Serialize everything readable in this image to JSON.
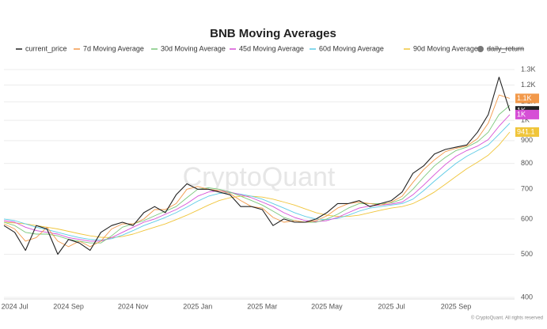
{
  "chart_data": {
    "type": "line",
    "title": "BNB Moving Averages",
    "watermark": "CryptoQuant",
    "copyright": "© CryptoQuant. All rights reserved",
    "categories": [
      null,
      "2024 Jul",
      null,
      null,
      null,
      null,
      "2024 Sep",
      null,
      null,
      null,
      null,
      null,
      "2024 Nov",
      null,
      null,
      null,
      null,
      null,
      "2025 Jan",
      null,
      null,
      null,
      null,
      null,
      "2025 Mar",
      null,
      null,
      null,
      null,
      null,
      "2025 May",
      null,
      null,
      null,
      null,
      null,
      "2025 Jul",
      null,
      null,
      null,
      null,
      null,
      "2025 Sep",
      null,
      null,
      null,
      null,
      null
    ],
    "log_scale": true,
    "grid": true,
    "ylim": [
      400,
      1300
    ],
    "yticks": [
      400,
      500,
      600,
      700,
      800,
      900,
      {
        "value": 1000,
        "label": "1K"
      },
      {
        "value": 1100,
        "label": "1.1K"
      },
      {
        "value": 1200,
        "label": "1.2K"
      },
      {
        "value": 1300,
        "label": "1.3K"
      }
    ],
    "series": [
      {
        "name": "current_price",
        "color": "#222222",
        "end_label": "1K",
        "values": [
          580,
          560,
          510,
          580,
          570,
          500,
          540,
          530,
          510,
          560,
          580,
          590,
          580,
          620,
          640,
          620,
          680,
          720,
          700,
          700,
          690,
          680,
          640,
          640,
          630,
          580,
          600,
          590,
          590,
          600,
          620,
          650,
          650,
          660,
          640,
          650,
          660,
          690,
          760,
          790,
          840,
          860,
          870,
          880,
          940,
          1030,
          1250,
          1050
        ]
      },
      {
        "name": "7d Moving Average",
        "color": "#f2994a",
        "end_label": "1.1K",
        "values": [
          585,
          570,
          535,
          545,
          575,
          535,
          520,
          535,
          520,
          535,
          570,
          585,
          585,
          600,
          630,
          630,
          650,
          700,
          710,
          700,
          695,
          685,
          660,
          640,
          635,
          605,
          590,
          595,
          590,
          595,
          610,
          635,
          650,
          655,
          650,
          645,
          655,
          675,
          725,
          775,
          815,
          850,
          865,
          875,
          910,
          985,
          1140,
          1120
        ]
      },
      {
        "name": "30d Moving Average",
        "color": "#7ac77a",
        "values": [
          590,
          580,
          560,
          555,
          555,
          550,
          540,
          535,
          530,
          530,
          550,
          575,
          585,
          595,
          610,
          625,
          640,
          670,
          700,
          705,
          700,
          690,
          675,
          660,
          645,
          625,
          605,
          595,
          590,
          590,
          600,
          615,
          635,
          650,
          650,
          650,
          652,
          665,
          700,
          745,
          790,
          825,
          855,
          870,
          895,
          940,
          1030,
          1080
        ]
      },
      {
        "name": "45d Moving Average",
        "color": "#d64fd6",
        "end_label": "1K",
        "values": [
          595,
          590,
          575,
          565,
          560,
          555,
          545,
          540,
          535,
          535,
          545,
          560,
          575,
          590,
          600,
          615,
          630,
          650,
          675,
          690,
          695,
          690,
          680,
          670,
          655,
          640,
          620,
          605,
          595,
          592,
          595,
          605,
          620,
          635,
          642,
          645,
          648,
          655,
          680,
          715,
          755,
          795,
          830,
          855,
          875,
          905,
          970,
          1030
        ]
      },
      {
        "name": "60d Moving Average",
        "color": "#5ccbe6",
        "values": [
          600,
          595,
          585,
          575,
          568,
          560,
          552,
          545,
          540,
          538,
          542,
          552,
          565,
          580,
          592,
          605,
          620,
          638,
          658,
          675,
          685,
          688,
          682,
          675,
          665,
          650,
          635,
          620,
          608,
          600,
          598,
          602,
          612,
          625,
          635,
          640,
          645,
          650,
          665,
          695,
          730,
          765,
          800,
          830,
          855,
          880,
          930,
          985
        ]
      },
      {
        "name": "90d Moving Average",
        "color": "#f0c53a",
        "end_label": "941.1",
        "values": [
          590,
          588,
          585,
          580,
          575,
          570,
          563,
          556,
          550,
          546,
          545,
          548,
          555,
          565,
          575,
          585,
          598,
          612,
          628,
          645,
          660,
          670,
          675,
          675,
          672,
          665,
          655,
          645,
          632,
          620,
          612,
          608,
          608,
          612,
          620,
          628,
          635,
          640,
          650,
          668,
          690,
          718,
          748,
          778,
          805,
          835,
          880,
          941
        ]
      },
      {
        "name": "daily_return",
        "color": "#777777",
        "hidden": true
      }
    ]
  }
}
